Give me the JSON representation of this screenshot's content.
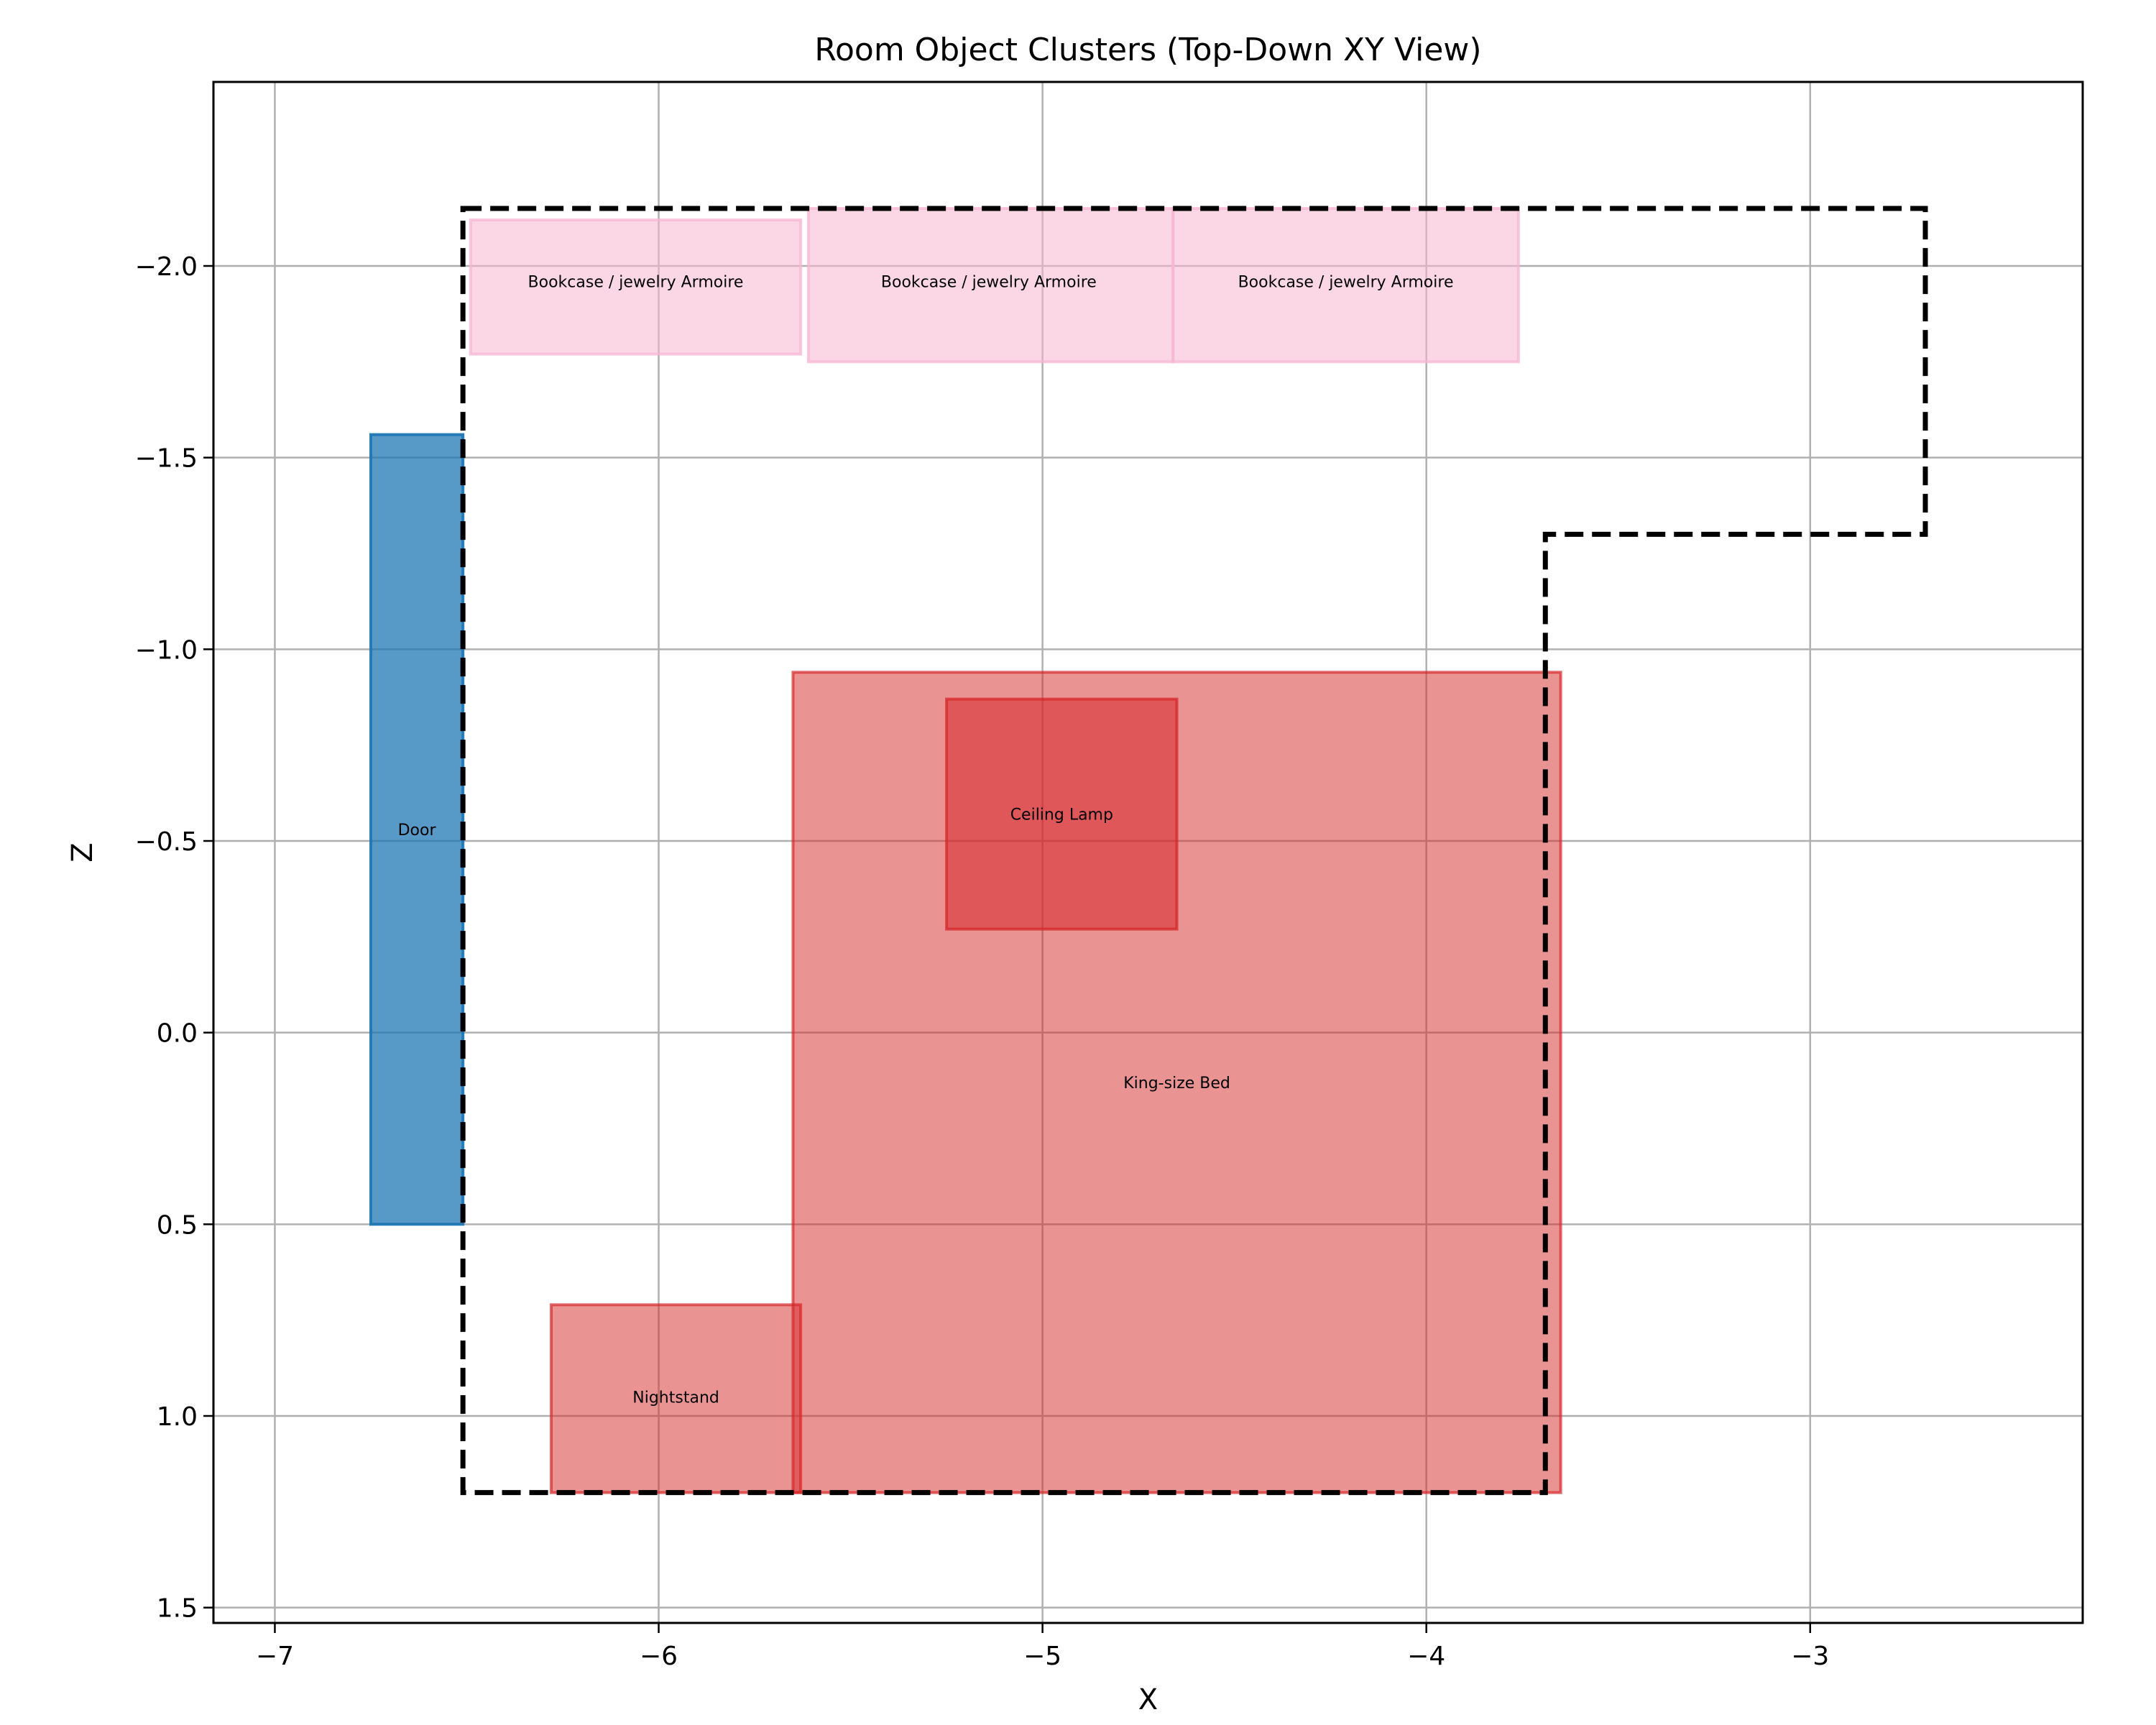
{
  "chart_data": {
    "type": "rect-layout",
    "title": "Room Object Clusters (Top-Down XY View)",
    "xlabel": "X",
    "ylabel": "Z",
    "xlim": [
      -7.16,
      -2.29
    ],
    "ylim": [
      1.54,
      -2.48
    ],
    "y_inverted": true,
    "grid": true,
    "xticks": [
      -7,
      -6,
      -5,
      -4,
      -3
    ],
    "xtick_labels": [
      "−7",
      "−6",
      "−5",
      "−4",
      "−3"
    ],
    "yticks": [
      -2.0,
      -1.5,
      -1.0,
      -0.5,
      0.0,
      0.5,
      1.0,
      1.5
    ],
    "ytick_labels": [
      "−2.0",
      "−1.5",
      "−1.0",
      "−0.5",
      "0.0",
      "0.5",
      "1.0",
      "1.5"
    ],
    "room_outline": [
      [
        -6.51,
        -2.15
      ],
      [
        -2.7,
        -2.15
      ],
      [
        -2.7,
        -1.3
      ],
      [
        -3.69,
        -1.3
      ],
      [
        -3.69,
        1.2
      ],
      [
        -6.51,
        1.2
      ]
    ],
    "objects": [
      {
        "label": "Door",
        "x0": -6.75,
        "x1": -6.51,
        "z0": -1.56,
        "z1": 0.5,
        "color": "#1f77b4",
        "opacity": 0.75,
        "label_x": -6.63,
        "label_z": -0.53
      },
      {
        "label": "Bookcase / jewelry Armoire",
        "x0": -6.49,
        "x1": -5.63,
        "z0": -2.12,
        "z1": -1.77,
        "color": "#f7b6d2",
        "opacity": 0.55,
        "label_x": -6.06,
        "label_z": -1.96
      },
      {
        "label": "Bookcase / jewelry Armoire",
        "x0": -5.61,
        "x1": -4.66,
        "z0": -2.15,
        "z1": -1.75,
        "color": "#f7b6d2",
        "opacity": 0.55,
        "label_x": -5.14,
        "label_z": -1.96
      },
      {
        "label": "Bookcase / jewelry Armoire",
        "x0": -4.66,
        "x1": -3.76,
        "z0": -2.15,
        "z1": -1.75,
        "color": "#f7b6d2",
        "opacity": 0.55,
        "label_x": -4.21,
        "label_z": -1.96
      },
      {
        "label": "King-size Bed",
        "x0": -5.65,
        "x1": -3.65,
        "z0": -0.94,
        "z1": 1.2,
        "color": "#d62728",
        "opacity": 0.5,
        "label_x": -4.65,
        "label_z": 0.13
      },
      {
        "label": "Ceiling Lamp",
        "x0": -5.25,
        "x1": -4.65,
        "z0": -0.87,
        "z1": -0.27,
        "color": "#d62728",
        "opacity": 0.55,
        "label_x": -4.95,
        "label_z": -0.57
      },
      {
        "label": "Nightstand",
        "x0": -6.28,
        "x1": -5.63,
        "z0": 0.71,
        "z1": 1.2,
        "color": "#d62728",
        "opacity": 0.5,
        "label_x": -5.955,
        "label_z": 0.95
      }
    ]
  }
}
